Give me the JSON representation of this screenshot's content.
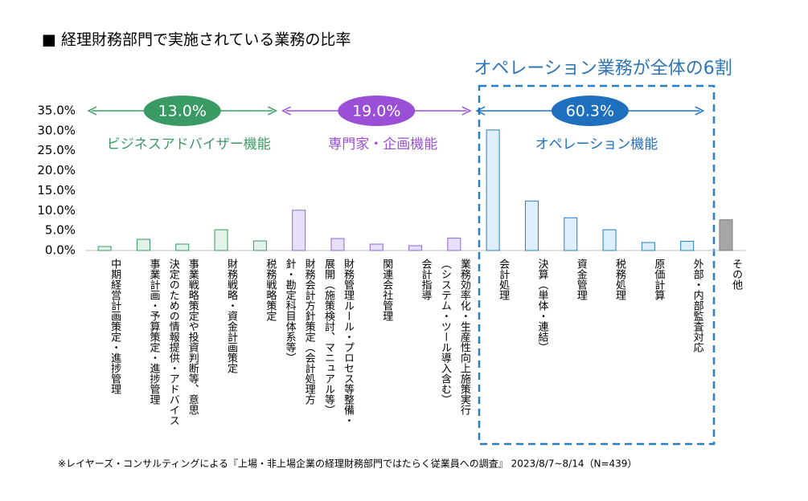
{
  "chart_data": {
    "type": "bar",
    "title": "■ 経理財務部門で実施されている業務の比率",
    "headline": "オペレーション業務が全体の6割",
    "categories": [
      "中期経営計画策定・進捗管理",
      "事業計画・予算策定・進捗管理",
      "事業戦略策定や投資判断等、意思\n決定のための情報提供・アドバイス",
      "財務戦略・資金計画策定",
      "税務戦略策定",
      "財務会計方針策定（会計処理方\n針・勘定科目体系等）",
      "財務管理ルール・プロセス等整備・\n展開（施策検討、マニュアル等）",
      "関連会社管理",
      "会計指導",
      "業務効率化・生産性向上施策実行\n（システム・ツール導入含む）",
      "会計処理",
      "決算（単体・連結）",
      "資金管理",
      "税務処理",
      "原価計算",
      "外部・内部監査対応",
      "その他"
    ],
    "values": [
      1.0,
      2.8,
      1.6,
      5.2,
      2.4,
      10.1,
      3.0,
      1.6,
      1.2,
      3.1,
      30.2,
      12.4,
      8.2,
      5.2,
      2.0,
      2.3,
      7.7
    ],
    "colors": [
      "#e2f4ea",
      "#e2f4ea",
      "#e2f4ea",
      "#e2f4ea",
      "#e2f4ea",
      "#e8e0fa",
      "#e8e0fa",
      "#e8e0fa",
      "#e8e0fa",
      "#e8e0fa",
      "#ddeffb",
      "#ddeffb",
      "#ddeffb",
      "#ddeffb",
      "#ddeffb",
      "#ddeffb",
      "#a6a6a6"
    ],
    "ylim": [
      0,
      35
    ],
    "yticks": [
      {
        "value": 0,
        "label": "0.0%"
      },
      {
        "value": 5,
        "label": "5.0%"
      },
      {
        "value": 10,
        "label": "10.0%"
      },
      {
        "value": 15,
        "label": "15.0%"
      },
      {
        "value": 20,
        "label": "20.0%"
      },
      {
        "value": 25,
        "label": "25.0%"
      },
      {
        "value": 30,
        "label": "30.0%"
      },
      {
        "value": 35,
        "label": "35.0%"
      }
    ],
    "groups": [
      {
        "name": "ビジネスアドバイザー機能",
        "value": 13.0,
        "label": "13.0%",
        "color": "#3a9a64"
      },
      {
        "name": "専門家・企画機能",
        "value": 19.0,
        "label": "19.0%",
        "color": "#9b4fd6"
      },
      {
        "name": "オペレーション機能",
        "value": 60.3,
        "label": "60.3%",
        "color": "#1f6fbf"
      }
    ],
    "footnote": "※レイヤーズ・コンサルティングによる『上場・非上場企業の経理財務部門ではたらく従業員への調査』 2023/8/7~8/14（N=439）"
  }
}
